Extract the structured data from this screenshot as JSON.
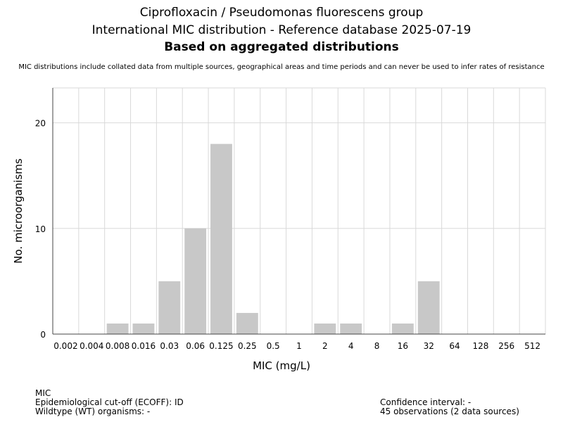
{
  "header": {
    "title1": "Ciprofloxacin / Pseudomonas fluorescens group",
    "title2": "International MIC distribution - Reference database 2025-07-19",
    "title3": "Based on aggregated distributions",
    "note": "MIC distributions include collated data from multiple sources, geographical areas and time periods and can never be used to infer rates of resistance"
  },
  "chart_data": {
    "type": "bar",
    "categories": [
      "0.002",
      "0.004",
      "0.008",
      "0.016",
      "0.03",
      "0.06",
      "0.125",
      "0.25",
      "0.5",
      "1",
      "2",
      "4",
      "8",
      "16",
      "32",
      "64",
      "128",
      "256",
      "512"
    ],
    "values": [
      0,
      0,
      1,
      1,
      5,
      10,
      18,
      2,
      0,
      0,
      1,
      1,
      0,
      1,
      5,
      0,
      0,
      0,
      0
    ],
    "xlabel": "MIC (mg/L)",
    "ylabel": "No. microorganisms",
    "ylim": [
      0,
      23.3
    ],
    "yticks": [
      0,
      10,
      20
    ],
    "grid": true,
    "bar_color": "#c8c8c8"
  },
  "footer": {
    "left": [
      "MIC",
      "Epidemiological cut-off (ECOFF): ID",
      "Wildtype (WT) organisms:  -"
    ],
    "right": [
      "Confidence interval: -",
      "45 observations (2 data sources)"
    ]
  }
}
